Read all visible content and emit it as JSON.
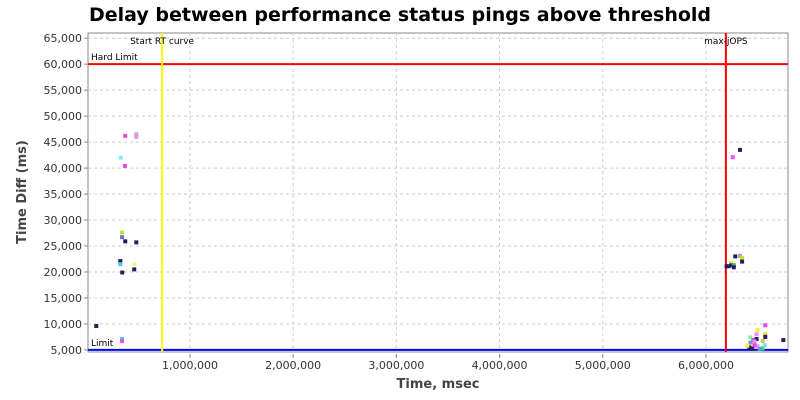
{
  "chart_data": {
    "type": "scatter",
    "title": "Delay between performance status pings above threshold",
    "xlabel": "Time, msec",
    "ylabel": "Time Diff (ms)",
    "xlim": [
      12000,
      6795000
    ],
    "ylim": [
      4600,
      66000
    ],
    "grid": true,
    "x_ticks": [
      {
        "v": 1000000,
        "label": "1,000,000"
      },
      {
        "v": 2000000,
        "label": "2,000,000"
      },
      {
        "v": 3000000,
        "label": "3,000,000"
      },
      {
        "v": 4000000,
        "label": "4,000,000"
      },
      {
        "v": 5000000,
        "label": "5,000,000"
      },
      {
        "v": 6000000,
        "label": "6,000,000"
      }
    ],
    "y_ticks": [
      {
        "v": 5000,
        "label": "5,000"
      },
      {
        "v": 10000,
        "label": "10,000"
      },
      {
        "v": 15000,
        "label": "15,000"
      },
      {
        "v": 20000,
        "label": "20,000"
      },
      {
        "v": 25000,
        "label": "25,000"
      },
      {
        "v": 30000,
        "label": "30,000"
      },
      {
        "v": 35000,
        "label": "35,000"
      },
      {
        "v": 40000,
        "label": "40,000"
      },
      {
        "v": 45000,
        "label": "45,000"
      },
      {
        "v": 50000,
        "label": "50,000"
      },
      {
        "v": 55000,
        "label": "55,000"
      },
      {
        "v": 60000,
        "label": "60,000"
      },
      {
        "v": 65000,
        "label": "65,000"
      }
    ],
    "reference_lines": [
      {
        "orientation": "horizontal",
        "value": 60000,
        "label": "Hard Limit",
        "color": "#ff0000"
      },
      {
        "orientation": "horizontal",
        "value": 5000,
        "label": "Limit",
        "color": "#0000ff"
      },
      {
        "orientation": "vertical",
        "value": 730000,
        "label": "Start RT curve",
        "color": "#ffff00"
      },
      {
        "orientation": "vertical",
        "value": 6193000,
        "label": "max-jOPS",
        "color": "#ff0000"
      }
    ],
    "points": [
      {
        "x": 92000,
        "y": 9600,
        "color": "#2a1a5e"
      },
      {
        "x": 342000,
        "y": 27600,
        "color": "#b4e63c"
      },
      {
        "x": 342000,
        "y": 26700,
        "color": "#7070c8"
      },
      {
        "x": 373000,
        "y": 25900,
        "color": "#2a1a5e"
      },
      {
        "x": 480000,
        "y": 25700,
        "color": "#2a1a5e"
      },
      {
        "x": 325000,
        "y": 22100,
        "color": "#2a1a5e"
      },
      {
        "x": 325000,
        "y": 21500,
        "color": "#50c8dc"
      },
      {
        "x": 344000,
        "y": 19900,
        "color": "#2a1a5e"
      },
      {
        "x": 460000,
        "y": 21500,
        "color": "#f5f58c"
      },
      {
        "x": 460000,
        "y": 20500,
        "color": "#2a1a5e"
      },
      {
        "x": 342000,
        "y": 7100,
        "color": "#50c8dc"
      },
      {
        "x": 342000,
        "y": 6700,
        "color": "#f050f0"
      },
      {
        "x": 373000,
        "y": 46200,
        "color": "#dc50dc"
      },
      {
        "x": 480000,
        "y": 46500,
        "color": "#b4b4b4"
      },
      {
        "x": 480000,
        "y": 46000,
        "color": "#f08cf0"
      },
      {
        "x": 330000,
        "y": 42000,
        "color": "#8cf0f0"
      },
      {
        "x": 370000,
        "y": 40400,
        "color": "#dc50dc"
      },
      {
        "x": 6330000,
        "y": 43500,
        "color": "#2a1a5e"
      },
      {
        "x": 6260000,
        "y": 42100,
        "color": "#f050f0"
      },
      {
        "x": 6284000,
        "y": 23000,
        "color": "#2a1a5e"
      },
      {
        "x": 6330000,
        "y": 23100,
        "color": "#c88cc8"
      },
      {
        "x": 6350000,
        "y": 22700,
        "color": "#b4e63c"
      },
      {
        "x": 6350000,
        "y": 22000,
        "color": "#2a1a5e"
      },
      {
        "x": 6200000,
        "y": 21100,
        "color": "#2a1a5e"
      },
      {
        "x": 6220000,
        "y": 21100,
        "color": "#2a1a5e"
      },
      {
        "x": 6245000,
        "y": 21800,
        "color": "#f0f03c"
      },
      {
        "x": 6245000,
        "y": 21300,
        "color": "#2a1a5e"
      },
      {
        "x": 6270000,
        "y": 21300,
        "color": "#3cb464"
      },
      {
        "x": 6270000,
        "y": 20900,
        "color": "#2a1a5e"
      },
      {
        "x": 6575000,
        "y": 9750,
        "color": "#dc50dc"
      },
      {
        "x": 6500000,
        "y": 8850,
        "color": "#f0f03c"
      },
      {
        "x": 6575000,
        "y": 8000,
        "color": "#f0c83c"
      },
      {
        "x": 6575000,
        "y": 7500,
        "color": "#2a1a5e"
      },
      {
        "x": 6750000,
        "y": 6900,
        "color": "#2a1a5e"
      },
      {
        "x": 6430000,
        "y": 7400,
        "color": "#8cf08c"
      },
      {
        "x": 6490000,
        "y": 7100,
        "color": "#2a1a5e"
      },
      {
        "x": 6550000,
        "y": 6700,
        "color": "#c8c85a"
      },
      {
        "x": 6430000,
        "y": 6400,
        "color": "#8c8cc8"
      },
      {
        "x": 6460000,
        "y": 6900,
        "color": "#a050dc"
      },
      {
        "x": 6470000,
        "y": 6600,
        "color": "#f08cf0"
      },
      {
        "x": 6420000,
        "y": 5500,
        "color": "#2a1a5e"
      },
      {
        "x": 6450000,
        "y": 5300,
        "color": "#2a1a5e"
      },
      {
        "x": 6500000,
        "y": 5700,
        "color": "#f08cf0"
      },
      {
        "x": 6550000,
        "y": 5300,
        "color": "#3cdc64"
      },
      {
        "x": 6570000,
        "y": 5900,
        "color": "#8cdcf0"
      },
      {
        "x": 6490000,
        "y": 8000,
        "color": "#f08cf0"
      },
      {
        "x": 6470000,
        "y": 5900,
        "color": "#dc50dc"
      },
      {
        "x": 6520000,
        "y": 5200,
        "color": "#50a0f0"
      },
      {
        "x": 6400000,
        "y": 5800,
        "color": "#f0f03c"
      }
    ]
  }
}
